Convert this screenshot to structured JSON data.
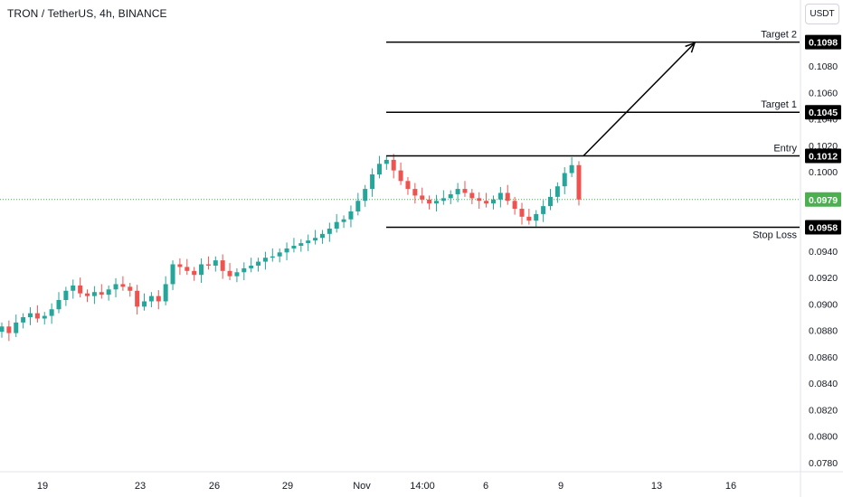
{
  "header": {
    "symbol_title": "TRON / TetherUS, 4h, BINANCE",
    "currency_button": "USDT"
  },
  "colors": {
    "up": "#26a69a",
    "down": "#ef5350",
    "current_price_bg": "#4caf50",
    "level_label_bg": "#000000",
    "line": "#000000",
    "axis_text": "#131722"
  },
  "chart_data": {
    "type": "candlestick",
    "title": "TRON / TetherUS, 4h, BINANCE",
    "ylim": [
      0.077,
      0.1113
    ],
    "y_ticks": [
      "0.0780",
      "0.0800",
      "0.0820",
      "0.0840",
      "0.0860",
      "0.0880",
      "0.0900",
      "0.0920",
      "0.0940",
      "0.0960",
      "0.0980",
      "0.1000",
      "0.1020",
      "0.1040",
      "0.1060",
      "0.1080"
    ],
    "x_ticks": [
      "19",
      "23",
      "26",
      "29",
      "Nov",
      "14:00",
      "6",
      "9",
      "13",
      "16"
    ],
    "current_price": "0.0979",
    "levels": [
      {
        "name": "Target 2",
        "label": "Target 2",
        "value": "0.1098"
      },
      {
        "name": "Target 1",
        "label": "Target 1",
        "value": "0.1045"
      },
      {
        "name": "Entry",
        "label": "Entry",
        "value": "0.1012"
      },
      {
        "name": "Stop Loss",
        "label": "Stop Loss",
        "value": "0.0958"
      }
    ],
    "arrow": {
      "from": 0.1012,
      "to": 0.1098
    },
    "close_path": [
      0.0883,
      0.0878,
      0.0886,
      0.089,
      0.0893,
      0.0889,
      0.0891,
      0.0896,
      0.0903,
      0.091,
      0.0914,
      0.0908,
      0.0906,
      0.0909,
      0.0907,
      0.0911,
      0.0915,
      0.0913,
      0.091,
      0.0898,
      0.0902,
      0.0906,
      0.0902,
      0.0915,
      0.093,
      0.0928,
      0.0925,
      0.0922,
      0.093,
      0.0929,
      0.0933,
      0.0925,
      0.0921,
      0.0924,
      0.0927,
      0.0929,
      0.0932,
      0.0935,
      0.0936,
      0.0939,
      0.0942,
      0.0944,
      0.0946,
      0.0948,
      0.095,
      0.0953,
      0.0957,
      0.0962,
      0.0964,
      0.097,
      0.0978,
      0.0987,
      0.0998,
      0.1006,
      0.1009,
      0.1001,
      0.0993,
      0.0987,
      0.0982,
      0.0979,
      0.0976,
      0.0978,
      0.098,
      0.0983,
      0.0987,
      0.0984,
      0.098,
      0.0978,
      0.0976,
      0.0979,
      0.0984,
      0.0978,
      0.0972,
      0.0966,
      0.0963,
      0.0968,
      0.0974,
      0.0981,
      0.0989,
      0.0999,
      0.1005,
      0.0979
    ]
  }
}
